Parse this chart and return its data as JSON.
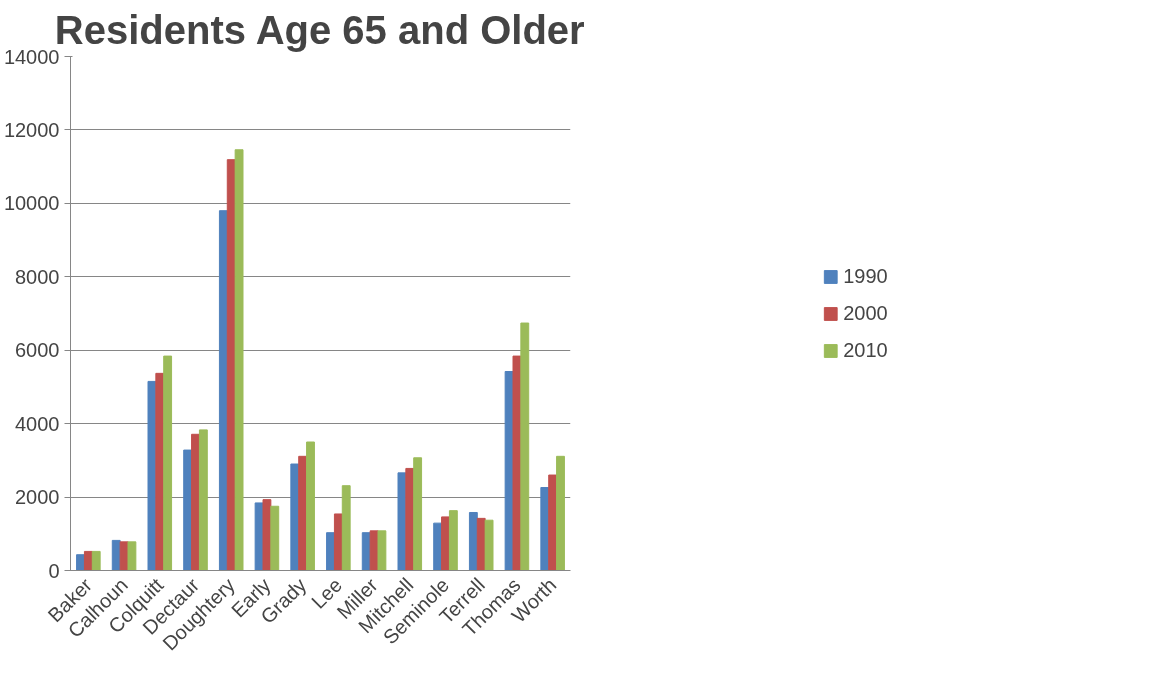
{
  "chart_data": {
    "type": "bar",
    "title": "Residents Age 65 and Older",
    "categories": [
      "Baker",
      "Calhoun",
      "Colquitt",
      "Dectaur",
      "Doughtery",
      "Early",
      "Grady",
      "Lee",
      "Miller",
      "Mitchell",
      "Seminole",
      "Terrell",
      "Thomas",
      "Worth"
    ],
    "series": [
      {
        "name": "1990",
        "color": "#4f81bd",
        "values": [
          430,
          820,
          5150,
          3280,
          9800,
          1840,
          2900,
          1030,
          1030,
          2660,
          1290,
          1580,
          5420,
          2260
        ]
      },
      {
        "name": "2000",
        "color": "#c0504d",
        "values": [
          520,
          780,
          5370,
          3710,
          11190,
          1930,
          3110,
          1540,
          1080,
          2780,
          1460,
          1420,
          5840,
          2600
        ]
      },
      {
        "name": "2010",
        "color": "#9bbb59",
        "values": [
          520,
          780,
          5840,
          3830,
          11460,
          1750,
          3500,
          2310,
          1080,
          3070,
          1630,
          1370,
          6740,
          3110
        ]
      }
    ],
    "ylim": [
      0,
      14000
    ],
    "yticks": [
      0,
      2000,
      4000,
      6000,
      8000,
      10000,
      12000,
      14000
    ],
    "grid": "y",
    "legend": "right"
  }
}
